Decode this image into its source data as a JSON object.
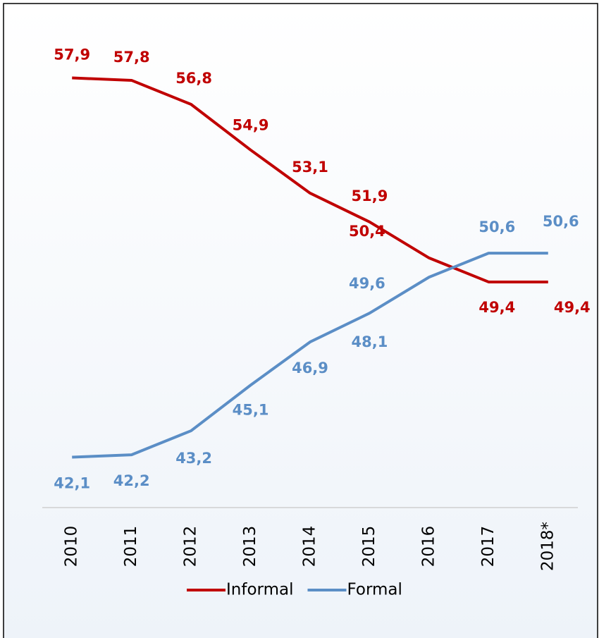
{
  "chart_data": {
    "type": "line",
    "categories": [
      "2010",
      "2011",
      "2012",
      "2013",
      "2014",
      "2015",
      "2016",
      "2017",
      "2018*"
    ],
    "series": [
      {
        "name": "Informal",
        "color": "#c00000",
        "values": [
          57.9,
          57.8,
          56.8,
          54.9,
          53.1,
          51.9,
          50.4,
          49.4,
          49.4
        ],
        "value_labels": [
          "57,9",
          "57,8",
          "56,8",
          "54,9",
          "53,1",
          "51,9",
          "50,4",
          "49,4",
          "49,4"
        ]
      },
      {
        "name": "Formal",
        "color": "#5b8ec6",
        "values": [
          42.1,
          42.2,
          43.2,
          45.1,
          46.9,
          48.1,
          49.6,
          50.6,
          50.6
        ],
        "value_labels": [
          "42,1",
          "42,2",
          "43,2",
          "45,1",
          "46,9",
          "48,1",
          "49,6",
          "50,6",
          "50,6"
        ]
      }
    ],
    "ylim": [
      40,
      61
    ],
    "legend": "bottom"
  }
}
